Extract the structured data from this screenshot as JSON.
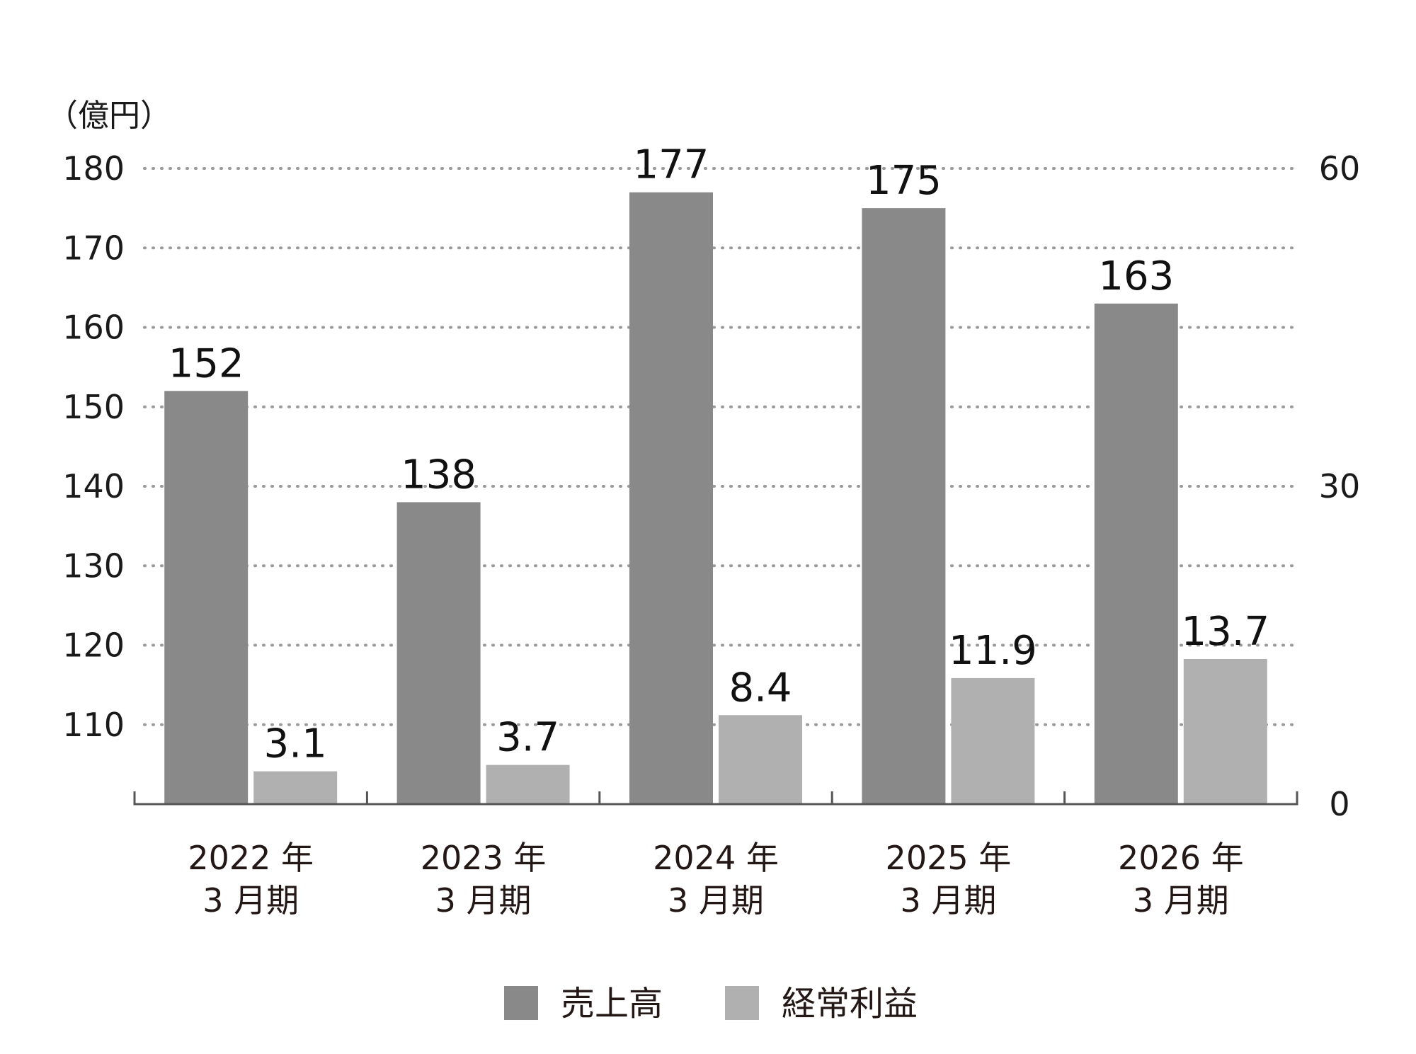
{
  "chart_data": {
    "type": "bar",
    "unit_label": "（億円）",
    "categories": [
      [
        "2022 年",
        "3 月期"
      ],
      [
        "2023 年",
        "3 月期"
      ],
      [
        "2024 年",
        "3 月期"
      ],
      [
        "2025 年",
        "3 月期"
      ],
      [
        "2026 年",
        "3 月期"
      ]
    ],
    "series": [
      {
        "name": "売上高",
        "values": [
          152,
          138,
          177,
          175,
          163
        ],
        "labels": [
          "152",
          "138",
          "177",
          "175",
          "163"
        ],
        "color": "#898989",
        "axis": "left"
      },
      {
        "name": "経常利益",
        "values": [
          3.1,
          3.7,
          8.4,
          11.9,
          13.7
        ],
        "labels": [
          "3.1",
          "3.7",
          "8.4",
          "11.9",
          "13.7"
        ],
        "color": "#b0b0b0",
        "axis": "right"
      }
    ],
    "y_left": {
      "min": 100,
      "max": 180,
      "ticks": [
        "110",
        "120",
        "130",
        "140",
        "150",
        "160",
        "170",
        "180"
      ]
    },
    "y_right": {
      "min": 0,
      "max": 60,
      "ticks": [
        "0",
        "30",
        "60"
      ]
    },
    "grid": true,
    "legend_position": "bottom-center"
  }
}
